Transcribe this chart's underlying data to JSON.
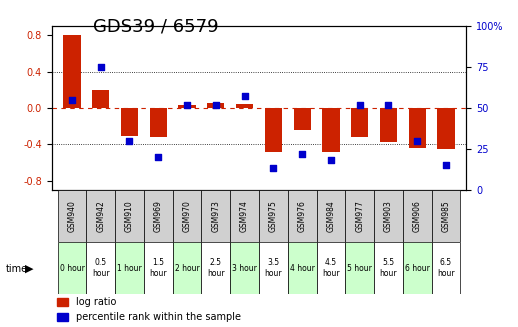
{
  "title": "GDS39 / 6579",
  "samples": [
    "GSM940",
    "GSM942",
    "GSM910",
    "GSM969",
    "GSM970",
    "GSM973",
    "GSM974",
    "GSM975",
    "GSM976",
    "GSM984",
    "GSM977",
    "GSM903",
    "GSM906",
    "GSM985"
  ],
  "times": [
    "0 hour",
    "0.5\nhour",
    "1 hour",
    "1.5\nhour",
    "2 hour",
    "2.5\nhour",
    "3 hour",
    "3.5\nhour",
    "4 hour",
    "4.5\nhour",
    "5 hour",
    "5.5\nhour",
    "6 hour",
    "6.5\nhour"
  ],
  "log_ratio": [
    0.8,
    0.2,
    -0.31,
    -0.32,
    0.03,
    0.05,
    0.04,
    -0.48,
    -0.24,
    -0.49,
    -0.32,
    -0.38,
    -0.44,
    -0.45
  ],
  "percentile": [
    55,
    75,
    30,
    20,
    52,
    52,
    57,
    13,
    22,
    18,
    52,
    52,
    30,
    15
  ],
  "time_colors": [
    "#ccffcc",
    "#ffffff",
    "#ccffcc",
    "#ffffff",
    "#ccffcc",
    "#ffffff",
    "#ccffcc",
    "#ffffff",
    "#ccffcc",
    "#ffffff",
    "#ccffcc",
    "#ffffff",
    "#ccffcc",
    "#ffffff"
  ],
  "bar_color": "#cc2200",
  "dot_color": "#0000cc",
  "ylim_left": [
    -0.9,
    0.9
  ],
  "ylim_right": [
    0,
    100
  ],
  "yticks_left": [
    -0.8,
    -0.4,
    0.0,
    0.4,
    0.8
  ],
  "yticks_right": [
    0,
    25,
    50,
    75,
    100
  ],
  "legend_labels": [
    "log ratio",
    "percentile rank within the sample"
  ],
  "background_color": "#ffffff",
  "title_fontsize": 13,
  "tick_fontsize": 7,
  "bar_width": 0.6
}
